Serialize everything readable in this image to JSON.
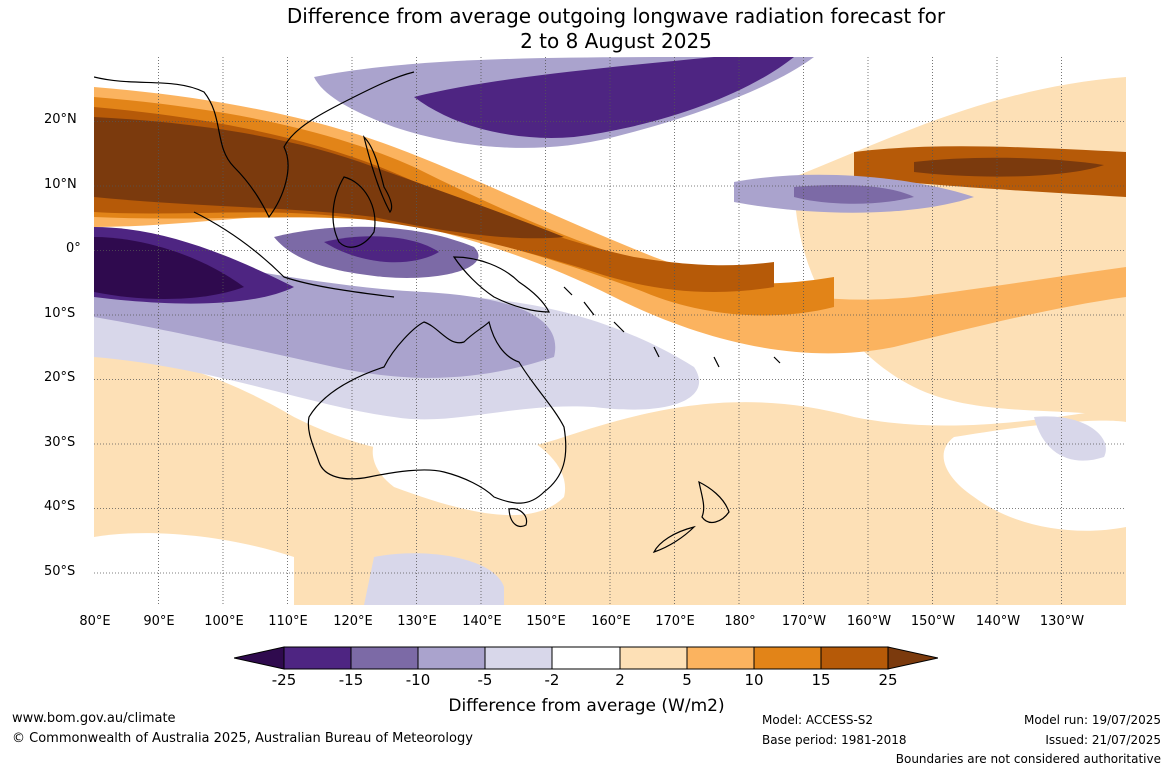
{
  "title": {
    "line1": "Difference from average outgoing longwave radiation forecast for",
    "line2": "2 to 8 August 2025"
  },
  "map": {
    "lat_labels": [
      "20°N",
      "10°N",
      "0°",
      "10°S",
      "20°S",
      "30°S",
      "40°S",
      "50°S"
    ],
    "lon_labels": [
      "80°E",
      "90°E",
      "100°E",
      "110°E",
      "120°E",
      "130°E",
      "140°E",
      "150°E",
      "160°E",
      "170°E",
      "180°",
      "170°W",
      "160°W",
      "150°W",
      "140°W",
      "130°W"
    ],
    "lon_range": [
      80,
      240
    ],
    "lat_range": [
      -55,
      30
    ]
  },
  "legend": {
    "ticks": [
      "-25",
      "-15",
      "-10",
      "-5",
      "-2",
      "2",
      "5",
      "10",
      "15",
      "25"
    ],
    "colors": [
      "#2f0a4e",
      "#4e2582",
      "#7c6aa6",
      "#aaa3cd",
      "#d8d7ea",
      "#ffffff",
      "#fde0b6",
      "#fbb35f",
      "#e28418",
      "#b65a08",
      "#7b3a0d"
    ],
    "label": "Difference from average (W/m2)"
  },
  "footer": {
    "website": "www.bom.gov.au/climate",
    "copyright": "© Commonwealth of Australia 2025, Australian Bureau of Meteorology",
    "model": "Model: ACCESS-S2",
    "base_period": "Base period: 1981-2018",
    "model_run": "Model run: 19/07/2025",
    "issued": "Issued: 21/07/2025",
    "disclaimer": "Boundaries are not considered authoritative"
  }
}
